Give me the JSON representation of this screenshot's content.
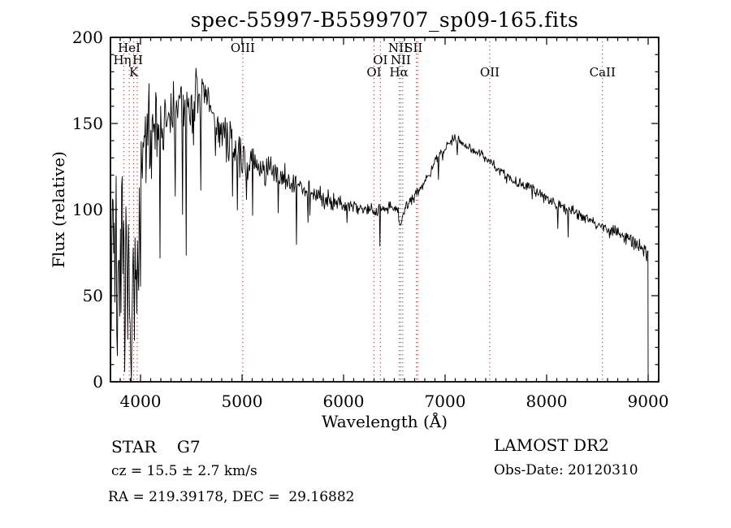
{
  "title": "spec-55997-B5599707_sp09-165.fits",
  "annotations": {
    "star_class": "STAR    G7",
    "survey": "LAMOST DR2",
    "cz": "cz = 15.5 ± 2.7 km/s",
    "obs_date": "Obs-Date: 20120310",
    "ra_dec": "RA = 219.39178, DEC =  29.16882"
  },
  "chart_data": {
    "type": "line",
    "title": "spec-55997-B5599707_sp09-165.fits",
    "xlabel": "Wavelength (Å)",
    "ylabel": "Flux (relative)",
    "xlim": [
      3704,
      9104
    ],
    "ylim": [
      0,
      200
    ],
    "x_ticks": [
      4000,
      5000,
      6000,
      7000,
      8000,
      9000
    ],
    "y_ticks": [
      0,
      50,
      100,
      150,
      200
    ],
    "x_minor_step": 100,
    "y_minor_step": 10,
    "grid": false,
    "legend": "none",
    "line_color": "#000000",
    "marker_line_color": "#a04040",
    "axis_color": "#000000",
    "marker_wavelengths": [
      3835,
      3889,
      3933,
      3968,
      5007,
      6300,
      6363,
      6548,
      6563,
      6583,
      6716,
      6731,
      7440,
      8550
    ],
    "spectral_lines": [
      {
        "label": "HeI",
        "wavelength": 3889,
        "row": 0
      },
      {
        "label": "Hη",
        "wavelength": 3820,
        "row": 1
      },
      {
        "label": "H",
        "wavelength": 3972,
        "row": 1
      },
      {
        "label": "K",
        "wavelength": 3933,
        "row": 2
      },
      {
        "label": "OIII",
        "wavelength": 5007,
        "row": 0
      },
      {
        "label": "NII",
        "wavelength": 6540,
        "row": 0
      },
      {
        "label": "SII",
        "wavelength": 6690,
        "row": 0
      },
      {
        "label": "OI",
        "wavelength": 6363,
        "row": 1
      },
      {
        "label": "NII",
        "wavelength": 6563,
        "row": 1
      },
      {
        "label": "OI",
        "wavelength": 6300,
        "row": 2
      },
      {
        "label": "Hα",
        "wavelength": 6545,
        "row": 2
      },
      {
        "label": "OII",
        "wavelength": 7440,
        "row": 2
      },
      {
        "label": "CaII",
        "wavelength": 8550,
        "row": 2
      }
    ],
    "spectrum": {
      "description": "Noisy G7 stellar spectrum; continuum control points [wavelength, flux] with half-range noise amplitude profile [wavelength, amp]; trace drops vertically to 0 at 9000 Å.",
      "lambda_start": 3712,
      "lambda_end": 9000,
      "step": 6,
      "seed": 7,
      "continuum": [
        [
          3712,
          90
        ],
        [
          3740,
          85
        ],
        [
          3780,
          70
        ],
        [
          3820,
          60
        ],
        [
          3860,
          55
        ],
        [
          3900,
          50
        ],
        [
          3940,
          45
        ],
        [
          3970,
          55
        ],
        [
          4000,
          110
        ],
        [
          4050,
          140
        ],
        [
          4100,
          150
        ],
        [
          4150,
          152
        ],
        [
          4200,
          150
        ],
        [
          4250,
          148
        ],
        [
          4300,
          152
        ],
        [
          4350,
          158
        ],
        [
          4400,
          160
        ],
        [
          4450,
          158
        ],
        [
          4500,
          160
        ],
        [
          4550,
          163
        ],
        [
          4600,
          165
        ],
        [
          4650,
          163
        ],
        [
          4700,
          158
        ],
        [
          4750,
          150
        ],
        [
          4800,
          145
        ],
        [
          4850,
          140
        ],
        [
          4900,
          136
        ],
        [
          4950,
          133
        ],
        [
          5000,
          130
        ],
        [
          5100,
          127
        ],
        [
          5200,
          124
        ],
        [
          5300,
          121
        ],
        [
          5400,
          118
        ],
        [
          5500,
          115
        ],
        [
          5600,
          112
        ],
        [
          5700,
          109
        ],
        [
          5800,
          107
        ],
        [
          5900,
          105
        ],
        [
          6000,
          103
        ],
        [
          6100,
          102
        ],
        [
          6200,
          101
        ],
        [
          6300,
          100
        ],
        [
          6400,
          101
        ],
        [
          6500,
          101
        ],
        [
          6540,
          98
        ],
        [
          6563,
          90
        ],
        [
          6590,
          99
        ],
        [
          6650,
          104
        ],
        [
          6750,
          112
        ],
        [
          6850,
          122
        ],
        [
          6950,
          132
        ],
        [
          7000,
          136
        ],
        [
          7050,
          140
        ],
        [
          7100,
          141
        ],
        [
          7150,
          140
        ],
        [
          7200,
          138
        ],
        [
          7300,
          134
        ],
        [
          7400,
          130
        ],
        [
          7500,
          125
        ],
        [
          7600,
          119
        ],
        [
          7700,
          116
        ],
        [
          7800,
          113
        ],
        [
          7900,
          110
        ],
        [
          8000,
          107
        ],
        [
          8100,
          104
        ],
        [
          8200,
          101
        ],
        [
          8300,
          98
        ],
        [
          8400,
          95
        ],
        [
          8500,
          92
        ],
        [
          8600,
          89
        ],
        [
          8700,
          86
        ],
        [
          8800,
          83
        ],
        [
          8900,
          79
        ],
        [
          8960,
          76
        ],
        [
          9000,
          74
        ]
      ],
      "noise": [
        [
          3712,
          65
        ],
        [
          3800,
          65
        ],
        [
          3900,
          65
        ],
        [
          3980,
          58
        ],
        [
          4010,
          40
        ],
        [
          4100,
          28
        ],
        [
          4200,
          25
        ],
        [
          4400,
          22
        ],
        [
          4600,
          20
        ],
        [
          4800,
          16
        ],
        [
          5000,
          13
        ],
        [
          5200,
          12
        ],
        [
          5500,
          10
        ],
        [
          5800,
          8
        ],
        [
          6100,
          6
        ],
        [
          6400,
          4.5
        ],
        [
          6700,
          4
        ],
        [
          7000,
          3.5
        ],
        [
          7400,
          3.5
        ],
        [
          7800,
          4
        ],
        [
          8200,
          4.5
        ],
        [
          8600,
          5
        ],
        [
          9000,
          5.5
        ]
      ]
    }
  }
}
